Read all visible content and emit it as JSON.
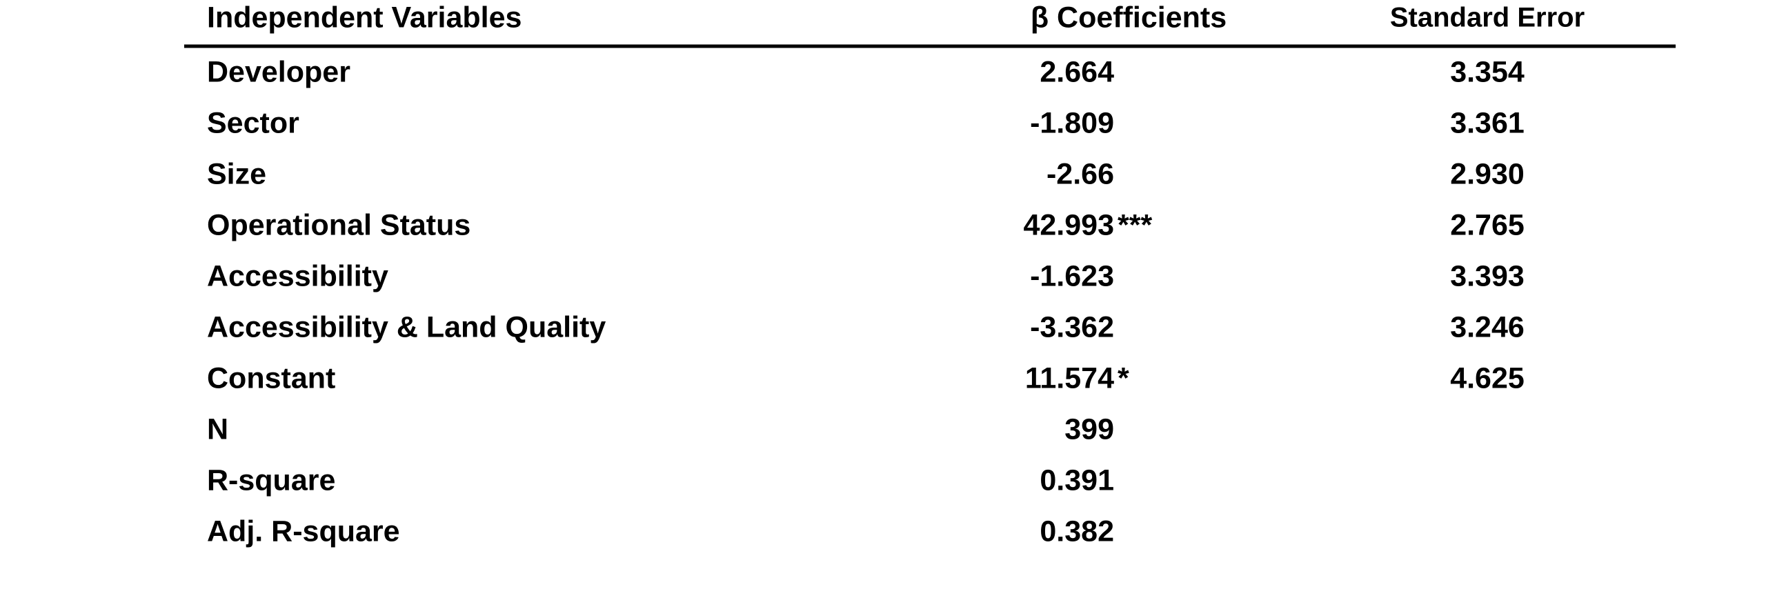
{
  "table": {
    "header": [
      "Independent Variables",
      "β Coefficients",
      "Standard Error"
    ],
    "rows": [
      {
        "variable": "Developer",
        "coefficient": "2.664",
        "standard_error": "3.354"
      },
      {
        "variable": "Sector",
        "coefficient": "-1.809",
        "standard_error": "3.361"
      },
      {
        "variable": "Size",
        "coefficient": "-2.66",
        "standard_error": "2.930"
      },
      {
        "variable": "Operational Status",
        "coefficient": "42.993",
        "significance": "***",
        "standard_error": "2.765"
      },
      {
        "variable": "Accessibility",
        "coefficient": "-1.623",
        "standard_error": "3.393"
      },
      {
        "variable": "Accessibility & Land Quality",
        "coefficient": "-3.362",
        "standard_error": "3.246"
      },
      {
        "variable": "Constant",
        "coefficient": "11.574",
        "significance": "*",
        "standard_error": "4.625"
      },
      {
        "variable": "N",
        "coefficient": "399"
      },
      {
        "variable": "R-square",
        "coefficient": "0.391"
      },
      {
        "variable": "Adj. R-square",
        "coefficient": "0.382"
      }
    ]
  }
}
